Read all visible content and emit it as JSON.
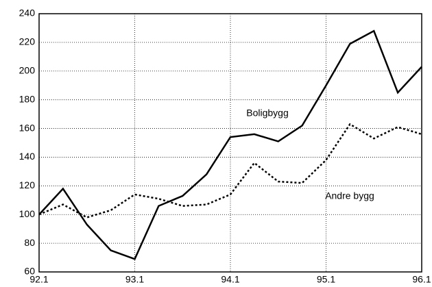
{
  "chart_data": {
    "type": "line",
    "categories": [
      "92.1",
      null,
      null,
      null,
      "93.1",
      null,
      null,
      null,
      "94.1",
      null,
      null,
      null,
      "95.1",
      null,
      null,
      null,
      "96.1"
    ],
    "series": [
      {
        "name": "Boligbygg",
        "color": "#000000",
        "dash": "solid",
        "values": [
          100,
          118,
          93,
          75,
          69,
          106,
          113,
          128,
          154,
          156,
          151,
          162,
          190,
          219,
          228,
          185,
          203
        ]
      },
      {
        "name": "Andre bygg",
        "color": "#000000",
        "dash": "dotted",
        "values": [
          100,
          107,
          98,
          103,
          114,
          111,
          106,
          107,
          114,
          136,
          123,
          122,
          138,
          163,
          153,
          161,
          156
        ]
      }
    ],
    "ylim": [
      60,
      240
    ],
    "yticks": [
      60,
      80,
      100,
      120,
      140,
      160,
      180,
      200,
      220,
      240
    ],
    "grid": true
  }
}
